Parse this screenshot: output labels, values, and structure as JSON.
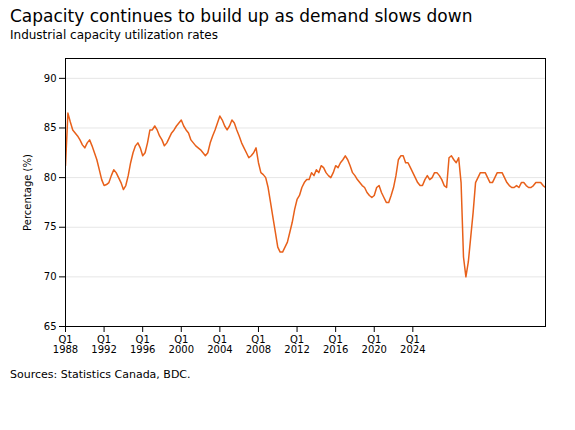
{
  "chart_data": {
    "type": "line",
    "title": "Capacity continues to build up as demand slows down",
    "subtitle": "Industrial capacity utilization rates",
    "ylabel": "Percentage (%)",
    "source": "Sources: Statistics Canada, BDC.",
    "categories": [
      "Q1\n1988",
      null,
      null,
      null,
      null,
      null,
      null,
      null,
      null,
      null,
      null,
      null,
      null,
      null,
      null,
      null,
      "Q1\n1992",
      null,
      null,
      null,
      null,
      null,
      null,
      null,
      null,
      null,
      null,
      null,
      null,
      null,
      null,
      null,
      "Q1\n1996",
      null,
      null,
      null,
      null,
      null,
      null,
      null,
      null,
      null,
      null,
      null,
      null,
      null,
      null,
      null,
      "Q1\n2000",
      null,
      null,
      null,
      null,
      null,
      null,
      null,
      null,
      null,
      null,
      null,
      null,
      null,
      null,
      null,
      "Q1\n2004",
      null,
      null,
      null,
      null,
      null,
      null,
      null,
      null,
      null,
      null,
      null,
      null,
      null,
      null,
      null,
      "Q1\n2008",
      null,
      null,
      null,
      null,
      null,
      null,
      null,
      null,
      null,
      null,
      null,
      null,
      null,
      null,
      null,
      "Q1\n2012",
      null,
      null,
      null,
      null,
      null,
      null,
      null,
      null,
      null,
      null,
      null,
      null,
      null,
      null,
      null,
      "Q1\n2016",
      null,
      null,
      null,
      null,
      null,
      null,
      null,
      null,
      null,
      null,
      null,
      null,
      null,
      null,
      null,
      "Q1\n2020",
      null,
      null,
      null,
      null,
      null,
      null,
      null,
      null,
      null,
      null,
      null,
      null,
      null,
      null,
      null,
      "Q1\n2024",
      null,
      null,
      null,
      null,
      null,
      null,
      null,
      null,
      null,
      null,
      null,
      null,
      null,
      null,
      null,
      null,
      null,
      null,
      null,
      null,
      null,
      null,
      null,
      null,
      null,
      null,
      null,
      null,
      null,
      null,
      null,
      null,
      null,
      null,
      null,
      null,
      null,
      null,
      null,
      null,
      null,
      null,
      null,
      null,
      null,
      null,
      null,
      null,
      null,
      null,
      null,
      null,
      null,
      null,
      null
    ],
    "values": [
      81.2,
      86.5,
      85.6,
      84.8,
      84.5,
      84.2,
      83.8,
      83.3,
      83.0,
      83.5,
      83.8,
      83.2,
      82.5,
      81.8,
      80.8,
      79.8,
      79.2,
      79.3,
      79.5,
      80.2,
      80.8,
      80.5,
      80.0,
      79.5,
      78.8,
      79.2,
      80.2,
      81.5,
      82.5,
      83.2,
      83.5,
      83.0,
      82.2,
      82.5,
      83.5,
      84.8,
      84.8,
      85.2,
      84.8,
      84.2,
      83.8,
      83.2,
      83.5,
      84.0,
      84.5,
      84.8,
      85.2,
      85.5,
      85.8,
      85.2,
      84.8,
      84.5,
      83.8,
      83.5,
      83.2,
      83.0,
      82.8,
      82.5,
      82.2,
      82.5,
      83.5,
      84.2,
      84.8,
      85.5,
      86.2,
      85.8,
      85.2,
      84.8,
      85.2,
      85.8,
      85.5,
      84.8,
      84.2,
      83.5,
      83.0,
      82.5,
      82.0,
      82.2,
      82.5,
      83.0,
      81.5,
      80.5,
      80.3,
      80.0,
      79.0,
      77.5,
      76.0,
      74.5,
      73.0,
      72.5,
      72.5,
      73.0,
      73.5,
      74.5,
      75.5,
      76.8,
      77.8,
      78.2,
      79.0,
      79.5,
      79.8,
      79.8,
      80.5,
      80.2,
      80.8,
      80.5,
      81.2,
      81.0,
      80.5,
      80.2,
      80.0,
      80.5,
      81.2,
      81.0,
      81.5,
      81.8,
      82.2,
      81.8,
      81.2,
      80.5,
      80.2,
      79.8,
      79.5,
      79.2,
      79.0,
      78.5,
      78.2,
      78.0,
      78.2,
      79.0,
      79.2,
      78.5,
      78.0,
      77.5,
      77.5,
      78.2,
      79.0,
      80.2,
      81.8,
      82.2,
      82.2,
      81.5,
      81.5,
      81.0,
      80.5,
      80.0,
      79.5,
      79.2,
      79.2,
      79.8,
      80.2,
      79.8,
      80.0,
      80.5,
      80.5,
      80.2,
      79.8,
      79.2,
      79.0,
      82.0,
      82.2,
      81.8,
      81.5,
      82.0,
      79.5,
      72.0,
      70.0,
      71.5,
      74.0,
      76.5,
      79.5,
      80.0,
      80.5,
      80.5,
      80.5,
      80.0,
      79.5,
      79.5,
      80.0,
      80.5,
      80.5,
      80.5,
      80.0,
      79.5,
      79.2,
      79.0,
      79.0,
      79.2,
      79.0,
      79.5,
      79.5,
      79.2,
      79.0,
      79.0,
      79.2,
      79.5,
      79.5,
      79.5,
      79.2,
      79.0
    ],
    "color": "#E8601A",
    "ylim": [
      65,
      92
    ],
    "yticks": [
      65,
      70,
      75,
      80,
      85,
      90
    ],
    "grid": true
  }
}
